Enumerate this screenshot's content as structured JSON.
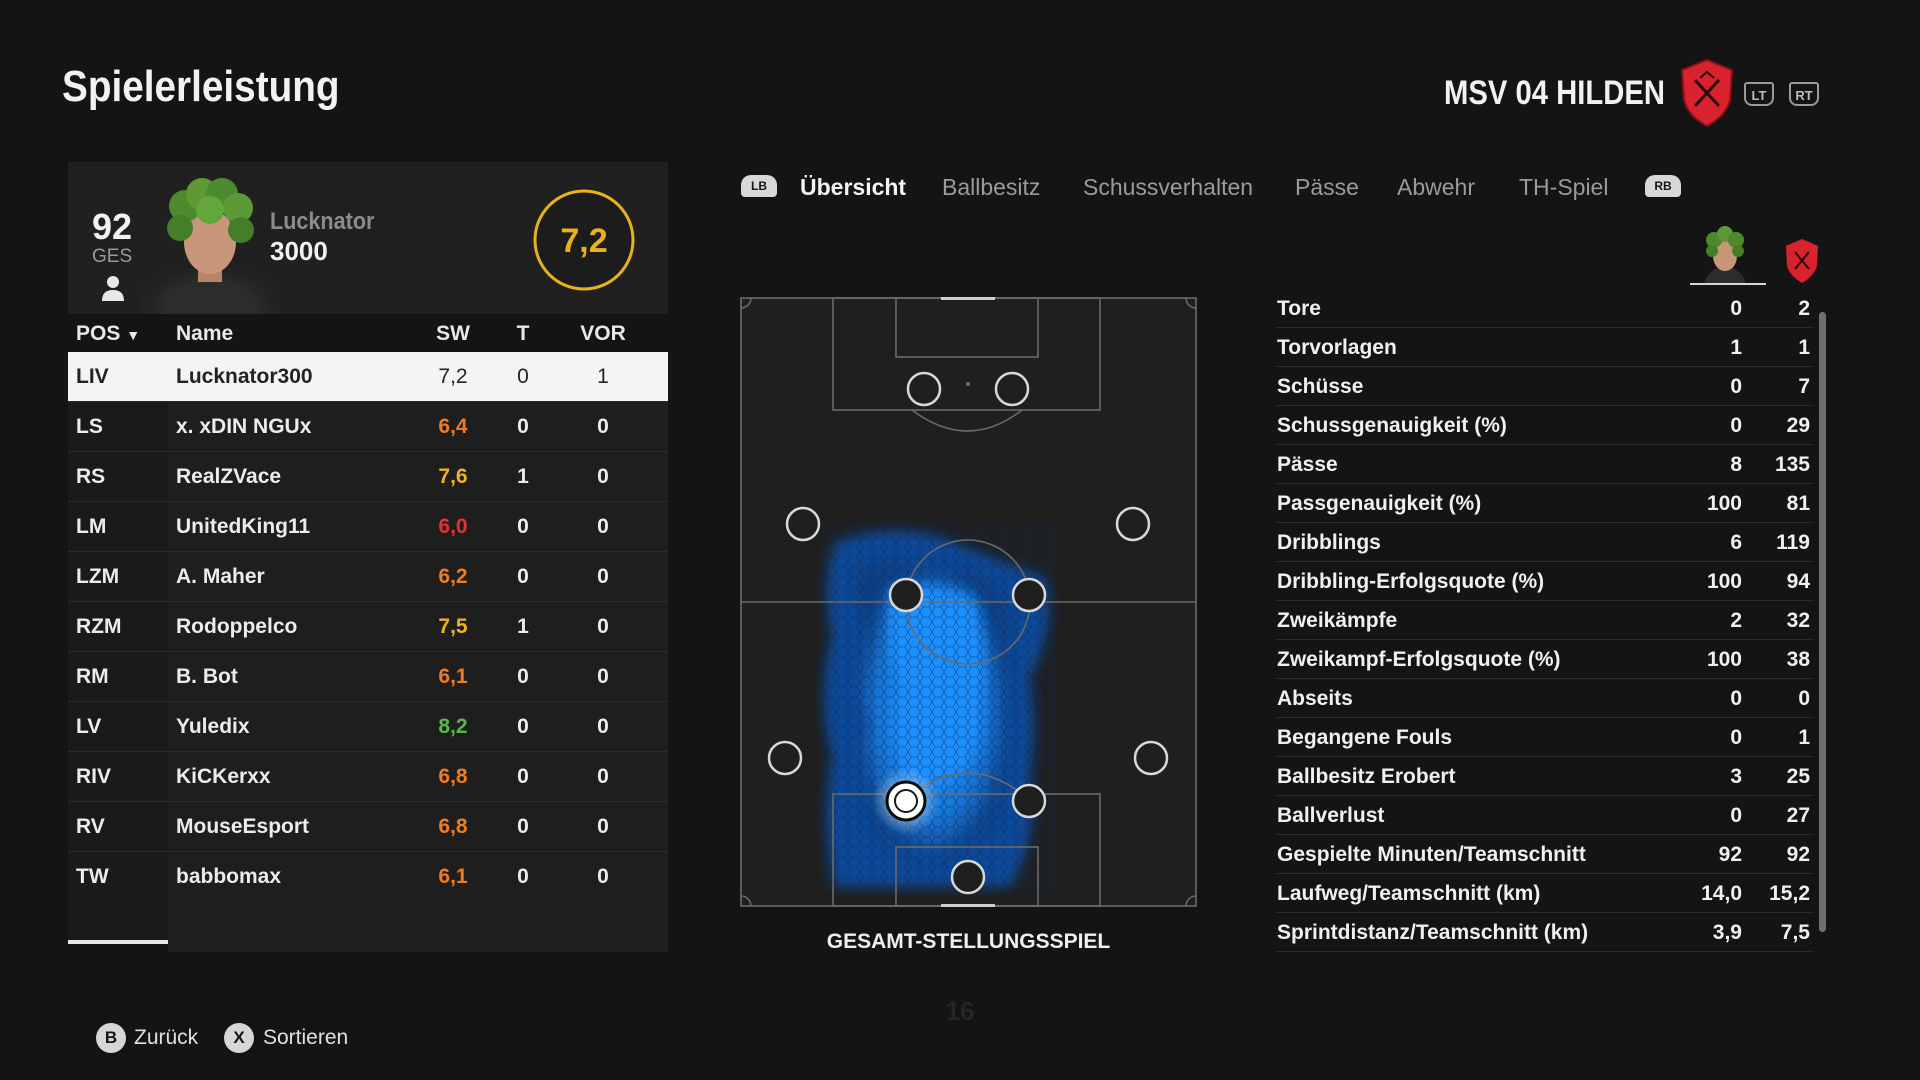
{
  "header": {
    "title": "Spielerleistung",
    "team_name": "MSV 04 HILDEN",
    "trigger_left": "LT",
    "trigger_right": "RT"
  },
  "player_card": {
    "overall": "92",
    "overall_label": "GES",
    "name_line1": "Lucknator",
    "name_line2": "3000",
    "rating": "7,2"
  },
  "table": {
    "headers": {
      "pos": "POS",
      "name": "Name",
      "sw": "SW",
      "t": "T",
      "vor": "VOR"
    },
    "rows": [
      {
        "pos": "LIV",
        "name": "Lucknator300",
        "sw": "7,2",
        "t": "0",
        "vor": "1",
        "sw_color": "#222222"
      },
      {
        "pos": "LS",
        "name": "x. xDIN NGUx",
        "sw": "6,4",
        "t": "0",
        "vor": "0",
        "sw_color": "#f07c1e"
      },
      {
        "pos": "RS",
        "name": "RealZVace",
        "sw": "7,6",
        "t": "1",
        "vor": "0",
        "sw_color": "#f0b31e"
      },
      {
        "pos": "LM",
        "name": "UnitedKing11",
        "sw": "6,0",
        "t": "0",
        "vor": "0",
        "sw_color": "#e8302c"
      },
      {
        "pos": "LZM",
        "name": "A. Maher",
        "sw": "6,2",
        "t": "0",
        "vor": "0",
        "sw_color": "#f07c1e"
      },
      {
        "pos": "RZM",
        "name": "Rodoppelco",
        "sw": "7,5",
        "t": "1",
        "vor": "0",
        "sw_color": "#f0b31e"
      },
      {
        "pos": "RM",
        "name": "B. Bot",
        "sw": "6,1",
        "t": "0",
        "vor": "0",
        "sw_color": "#f07c1e"
      },
      {
        "pos": "LV",
        "name": "Yuledix",
        "sw": "8,2",
        "t": "0",
        "vor": "0",
        "sw_color": "#56b948"
      },
      {
        "pos": "RIV",
        "name": "KiCKerxx",
        "sw": "6,8",
        "t": "0",
        "vor": "0",
        "sw_color": "#f07c1e"
      },
      {
        "pos": "RV",
        "name": "MouseEsport",
        "sw": "6,8",
        "t": "0",
        "vor": "0",
        "sw_color": "#f07c1e"
      },
      {
        "pos": "TW",
        "name": "babbomax",
        "sw": "6,1",
        "t": "0",
        "vor": "0",
        "sw_color": "#f07c1e"
      }
    ]
  },
  "tabs": {
    "lb": "LB",
    "rb": "RB",
    "items": [
      "Übersicht",
      "Ballbesitz",
      "Schussverhalten",
      "Pässe",
      "Abwehr",
      "TH-Spiel"
    ],
    "active": "Übersicht"
  },
  "pitch": {
    "caption": "GESAMT-STELLUNGSSPIEL"
  },
  "page_number": "16",
  "stats": [
    {
      "label": "Tore",
      "player": "0",
      "team": "2"
    },
    {
      "label": "Torvorlagen",
      "player": "1",
      "team": "1"
    },
    {
      "label": "Schüsse",
      "player": "0",
      "team": "7"
    },
    {
      "label": "Schussgenauigkeit (%)",
      "player": "0",
      "team": "29"
    },
    {
      "label": "Pässe",
      "player": "8",
      "team": "135"
    },
    {
      "label": "Passgenauigkeit (%)",
      "player": "100",
      "team": "81"
    },
    {
      "label": "Dribblings",
      "player": "6",
      "team": "119"
    },
    {
      "label": "Dribbling-Erfolgsquote (%)",
      "player": "100",
      "team": "94"
    },
    {
      "label": "Zweikämpfe",
      "player": "2",
      "team": "32"
    },
    {
      "label": "Zweikampf-Erfolgsquote (%)",
      "player": "100",
      "team": "38"
    },
    {
      "label": "Abseits",
      "player": "0",
      "team": "0"
    },
    {
      "label": "Begangene Fouls",
      "player": "0",
      "team": "1"
    },
    {
      "label": "Ballbesitz Erobert",
      "player": "3",
      "team": "25"
    },
    {
      "label": "Ballverlust",
      "player": "0",
      "team": "27"
    },
    {
      "label": "Gespielte Minuten/Teamschnitt",
      "player": "92",
      "team": "92"
    },
    {
      "label": "Laufweg/Teamschnitt (km)",
      "player": "14,0",
      "team": "15,2"
    },
    {
      "label": "Sprintdistanz/Teamschnitt (km)",
      "player": "3,9",
      "team": "7,5"
    }
  ],
  "footer": {
    "back_key": "B",
    "back_label": "Zurück",
    "sort_key": "X",
    "sort_label": "Sortieren"
  },
  "colors": {
    "accent_gold": "#e8b21a",
    "heat_blue": "#1e90ff",
    "crest_red": "#d8232f",
    "background": "#141414"
  }
}
